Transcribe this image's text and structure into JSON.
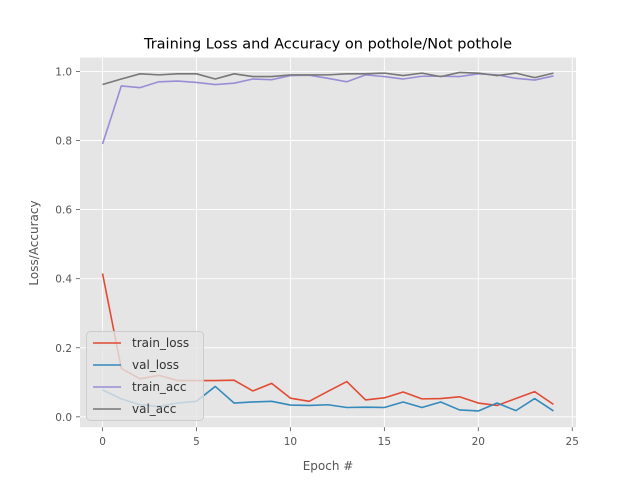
{
  "chart_data": {
    "type": "line",
    "title": "Training Loss and Accuracy on pothole/Not pothole",
    "xlabel": "Epoch #",
    "ylabel": "Loss/Accuracy",
    "xlim": [
      -1.2,
      25.2
    ],
    "ylim": [
      -0.03,
      1.04
    ],
    "xticks": [
      0,
      5,
      10,
      15,
      20,
      25
    ],
    "yticks": [
      0.0,
      0.2,
      0.4,
      0.6,
      0.8,
      1.0
    ],
    "xtick_labels": [
      "0",
      "5",
      "10",
      "15",
      "20",
      "25"
    ],
    "ytick_labels": [
      "0.0",
      "0.2",
      "0.4",
      "0.6",
      "0.8",
      "1.0"
    ],
    "grid": true,
    "legend_position": "lower-left",
    "x": [
      0,
      1,
      2,
      3,
      4,
      5,
      6,
      7,
      8,
      9,
      10,
      11,
      12,
      13,
      14,
      15,
      16,
      17,
      18,
      19,
      20,
      21,
      22,
      23,
      24
    ],
    "series": [
      {
        "name": "train_loss",
        "color": "#e24a33",
        "values": [
          0.415,
          0.14,
          0.11,
          0.12,
          0.105,
          0.105,
          0.105,
          0.106,
          0.075,
          0.097,
          0.054,
          0.045,
          0.074,
          0.102,
          0.049,
          0.055,
          0.072,
          0.052,
          0.053,
          0.058,
          0.04,
          0.033,
          0.053,
          0.073,
          0.036
        ]
      },
      {
        "name": "val_loss",
        "color": "#348abd",
        "values": [
          0.078,
          0.052,
          0.035,
          0.03,
          0.04,
          0.045,
          0.088,
          0.04,
          0.043,
          0.045,
          0.034,
          0.033,
          0.035,
          0.027,
          0.028,
          0.027,
          0.043,
          0.027,
          0.043,
          0.02,
          0.017,
          0.04,
          0.018,
          0.053,
          0.017
        ]
      },
      {
        "name": "train_acc",
        "color": "#988ed5",
        "values": [
          0.79,
          0.958,
          0.953,
          0.97,
          0.972,
          0.968,
          0.962,
          0.966,
          0.978,
          0.976,
          0.988,
          0.989,
          0.98,
          0.97,
          0.99,
          0.985,
          0.978,
          0.986,
          0.986,
          0.985,
          0.993,
          0.99,
          0.98,
          0.975,
          0.987
        ]
      },
      {
        "name": "val_acc",
        "color": "#777777",
        "values": [
          0.962,
          0.978,
          0.993,
          0.99,
          0.993,
          0.993,
          0.978,
          0.993,
          0.985,
          0.985,
          0.99,
          0.99,
          0.99,
          0.993,
          0.993,
          0.995,
          0.988,
          0.995,
          0.985,
          0.997,
          0.995,
          0.988,
          0.995,
          0.982,
          0.995
        ]
      }
    ]
  },
  "style": {
    "plot_background": "#e5e5e5",
    "grid_color": "#ffffff",
    "text_color": "#555555",
    "title_color": "#000000"
  }
}
